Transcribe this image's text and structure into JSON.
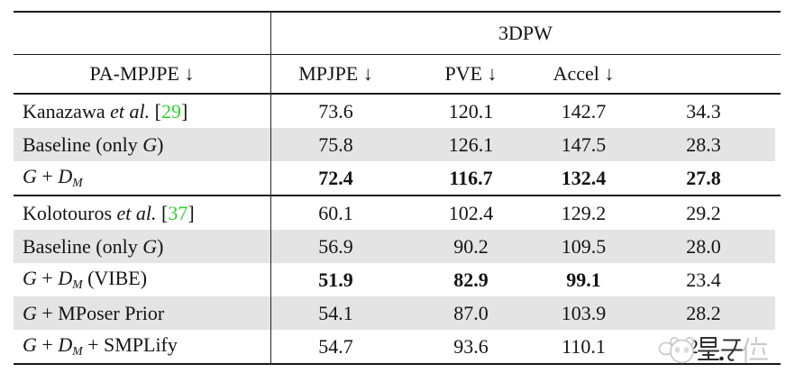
{
  "colors": {
    "reference_green": "#2fd32f",
    "row_shade": "#e4e4e4",
    "rule_black": "#191919",
    "text": "#141414",
    "watermark_light": "#c6c6c6",
    "watermark_dark": "#303030"
  },
  "table": {
    "dataset_header": "3DPW",
    "columns": [
      "PA-MPJPE ↓",
      "MPJPE ↓",
      "PVE ↓",
      "Accel ↓"
    ],
    "sections": [
      {
        "rows": [
          {
            "shaded": false,
            "label": [
              {
                "text": "Kanazawa ",
                "style": "plain"
              },
              {
                "text": "et al.",
                "style": "italic"
              },
              {
                "text": " [",
                "style": "plain"
              },
              {
                "text": "29",
                "style": "ref"
              },
              {
                "text": "]",
                "style": "plain"
              }
            ],
            "values": [
              {
                "text": "73.6",
                "bold": false
              },
              {
                "text": "120.1",
                "bold": false
              },
              {
                "text": "142.7",
                "bold": false
              },
              {
                "text": "34.3",
                "bold": false
              }
            ]
          },
          {
            "shaded": true,
            "label": [
              {
                "text": "Baseline (only ",
                "style": "plain"
              },
              {
                "text": "G",
                "style": "script"
              },
              {
                "text": ")",
                "style": "plain"
              }
            ],
            "values": [
              {
                "text": "75.8",
                "bold": false
              },
              {
                "text": "126.1",
                "bold": false
              },
              {
                "text": "147.5",
                "bold": false
              },
              {
                "text": "28.3",
                "bold": false
              }
            ]
          },
          {
            "shaded": false,
            "label": [
              {
                "text": "G",
                "style": "script"
              },
              {
                "text": " + ",
                "style": "plain"
              },
              {
                "text": "D",
                "style": "script"
              },
              {
                "text": "M",
                "style": "sub"
              }
            ],
            "values": [
              {
                "text": "72.4",
                "bold": true
              },
              {
                "text": "116.7",
                "bold": true
              },
              {
                "text": "132.4",
                "bold": true
              },
              {
                "text": "27.8",
                "bold": true
              }
            ]
          }
        ]
      },
      {
        "rows": [
          {
            "shaded": false,
            "label": [
              {
                "text": "Kolotouros ",
                "style": "plain"
              },
              {
                "text": "et al.",
                "style": "italic"
              },
              {
                "text": " [",
                "style": "plain"
              },
              {
                "text": "37",
                "style": "ref"
              },
              {
                "text": "]",
                "style": "plain"
              }
            ],
            "values": [
              {
                "text": "60.1",
                "bold": false
              },
              {
                "text": "102.4",
                "bold": false
              },
              {
                "text": "129.2",
                "bold": false
              },
              {
                "text": "29.2",
                "bold": false
              }
            ]
          },
          {
            "shaded": true,
            "label": [
              {
                "text": "Baseline (only ",
                "style": "plain"
              },
              {
                "text": "G",
                "style": "script"
              },
              {
                "text": ")",
                "style": "plain"
              }
            ],
            "values": [
              {
                "text": "56.9",
                "bold": false
              },
              {
                "text": "90.2",
                "bold": false
              },
              {
                "text": "109.5",
                "bold": false
              },
              {
                "text": "28.0",
                "bold": false
              }
            ]
          },
          {
            "shaded": false,
            "label": [
              {
                "text": "G",
                "style": "script"
              },
              {
                "text": " + ",
                "style": "plain"
              },
              {
                "text": "D",
                "style": "script"
              },
              {
                "text": "M",
                "style": "sub"
              },
              {
                "text": " (VIBE)",
                "style": "plain"
              }
            ],
            "values": [
              {
                "text": "51.9",
                "bold": true
              },
              {
                "text": "82.9",
                "bold": true
              },
              {
                "text": "99.1",
                "bold": true
              },
              {
                "text": "23.4",
                "bold": false
              }
            ]
          },
          {
            "shaded": true,
            "label": [
              {
                "text": "G",
                "style": "script"
              },
              {
                "text": " + MPoser Prior",
                "style": "plain"
              }
            ],
            "values": [
              {
                "text": "54.1",
                "bold": false
              },
              {
                "text": "87.0",
                "bold": false
              },
              {
                "text": "103.9",
                "bold": false
              },
              {
                "text": "28.2",
                "bold": false
              }
            ]
          },
          {
            "shaded": false,
            "label": [
              {
                "text": "G",
                "style": "script"
              },
              {
                "text": " + ",
                "style": "plain"
              },
              {
                "text": "D",
                "style": "script"
              },
              {
                "text": "M",
                "style": "sub"
              },
              {
                "text": " + SMPLify",
                "style": "plain"
              }
            ],
            "values": [
              {
                "text": "54.7",
                "bold": false
              },
              {
                "text": "93.6",
                "bold": false
              },
              {
                "text": "110.1",
                "bold": false
              },
              {
                "text": "2",
                "bold": false,
                "obscured": true
              }
            ]
          }
        ]
      }
    ]
  },
  "watermark": {
    "text": "量子位",
    "visible_decimal": "."
  }
}
